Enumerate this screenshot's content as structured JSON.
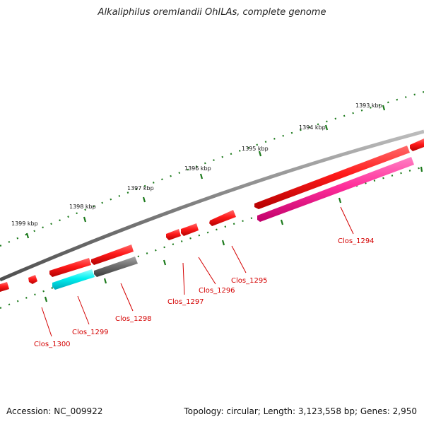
{
  "title": "Alkaliphilus oremlandii OhILAs, complete genome",
  "footer": {
    "accession": "Accession: NC_009922",
    "summary": "Topology: circular; Length: 3,123,558 bp; Genes: 2,950"
  },
  "colors": {
    "backbone": "#7f7f7f",
    "tick_dot": "#1c7a1c",
    "label": "#d40000",
    "gene_red": "#ff1a1a",
    "gene_magenta": "#ff2d9a",
    "gene_cyan": "#00f0f0",
    "gene_gray": "#6e6e6e"
  },
  "scale_labels": [
    "1393 kbp",
    "1394 kbp",
    "1395 kbp",
    "1396 kbp",
    "1397 kbp",
    "1398 kbp",
    "1399 kbp"
  ],
  "gene_labels": [
    "Clos_1294",
    "Clos_1295",
    "Clos_1296",
    "Clos_1297",
    "Clos_1298",
    "Clos_1299",
    "Clos_1300"
  ]
}
